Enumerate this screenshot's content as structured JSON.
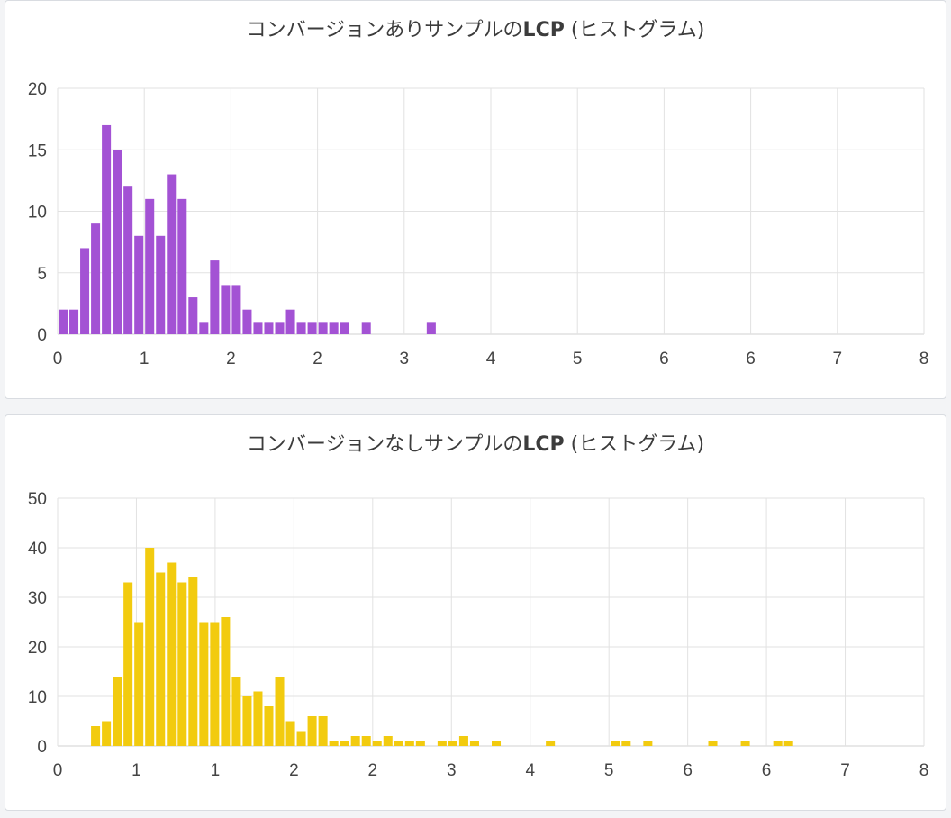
{
  "chart_data": [
    {
      "type": "bar",
      "title_prefix": "コンバージョンありサンプルの",
      "title_bold": "LCP",
      "title_suffix": " (ヒストグラム)",
      "xlabel": "",
      "ylabel": "",
      "xlim": [
        0,
        8
      ],
      "ylim": [
        0,
        20
      ],
      "x_tick_labels": [
        "0",
        "1",
        "2",
        "2",
        "3",
        "4",
        "5",
        "6",
        "6",
        "7",
        "8"
      ],
      "y_ticks": [
        0,
        5,
        10,
        15,
        20
      ],
      "bin_width": 0.1,
      "color": "#a352d4",
      "grid": true,
      "x": [
        0.0,
        0.1,
        0.2,
        0.3,
        0.4,
        0.5,
        0.6,
        0.7,
        0.8,
        0.9,
        1.0,
        1.1,
        1.2,
        1.3,
        1.4,
        1.5,
        1.6,
        1.7,
        1.8,
        1.9,
        2.0,
        2.1,
        2.2,
        2.3,
        2.4,
        2.5,
        2.6,
        2.8,
        3.4
      ],
      "values": [
        2,
        2,
        7,
        9,
        17,
        15,
        12,
        8,
        11,
        8,
        13,
        11,
        3,
        1,
        6,
        4,
        4,
        2,
        1,
        1,
        1,
        2,
        1,
        1,
        1,
        1,
        1,
        1,
        1
      ]
    },
    {
      "type": "bar",
      "title_prefix": "コンバージョンなしサンプルの",
      "title_bold": "LCP",
      "title_suffix": " (ヒストグラム)",
      "xlabel": "",
      "ylabel": "",
      "xlim": [
        0,
        8
      ],
      "ylim": [
        0,
        50
      ],
      "x_tick_labels": [
        "0",
        "1",
        "1",
        "2",
        "2",
        "3",
        "4",
        "5",
        "6",
        "6",
        "7",
        "8"
      ],
      "y_ticks": [
        0,
        10,
        20,
        30,
        40,
        50
      ],
      "bin_width": 0.1,
      "color": "#f2cb0f",
      "grid": true,
      "x": [
        0.3,
        0.4,
        0.5,
        0.6,
        0.7,
        0.8,
        0.9,
        1.0,
        1.1,
        1.2,
        1.3,
        1.4,
        1.5,
        1.6,
        1.7,
        1.8,
        1.9,
        2.0,
        2.1,
        2.2,
        2.3,
        2.4,
        2.5,
        2.6,
        2.7,
        2.8,
        2.9,
        3.0,
        3.1,
        3.2,
        3.3,
        3.5,
        3.6,
        3.7,
        3.8,
        4.0,
        4.5,
        5.1,
        5.2,
        5.4,
        6.0,
        6.3,
        6.6,
        6.7
      ],
      "values": [
        4,
        5,
        14,
        33,
        25,
        40,
        35,
        37,
        33,
        34,
        25,
        25,
        26,
        14,
        10,
        11,
        8,
        14,
        5,
        3,
        6,
        6,
        1,
        1,
        2,
        2,
        1,
        2,
        1,
        1,
        1,
        1,
        1,
        2,
        1,
        1,
        1,
        1,
        1,
        1,
        1,
        1,
        1,
        1
      ]
    }
  ]
}
